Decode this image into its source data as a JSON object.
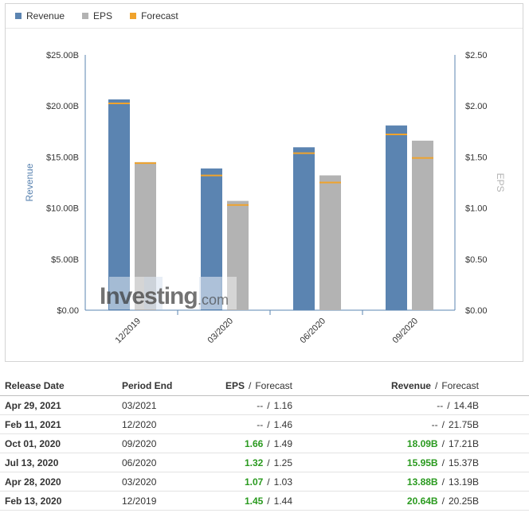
{
  "legend": {
    "revenue": "Revenue",
    "eps": "EPS",
    "forecast": "Forecast"
  },
  "colors": {
    "revenue": "#5b84b1",
    "eps": "#b3b3b3",
    "forecast": "#f0a32c",
    "positive": "#2a9a1f"
  },
  "watermark": {
    "brand": "Investing",
    "suffix": ".com"
  },
  "chart_data": {
    "type": "bar",
    "categories": [
      "12/2019",
      "03/2020",
      "06/2020",
      "09/2020"
    ],
    "series": [
      {
        "name": "Revenue",
        "axis": "left",
        "unit": "B",
        "values": [
          20.64,
          13.88,
          15.95,
          18.09
        ],
        "forecast": [
          20.25,
          13.19,
          15.37,
          17.21
        ]
      },
      {
        "name": "EPS",
        "axis": "right",
        "values": [
          1.45,
          1.07,
          1.32,
          1.66
        ],
        "forecast": [
          1.44,
          1.03,
          1.25,
          1.49
        ]
      }
    ],
    "ylabel_left": "Revenue",
    "ylabel_right": "EPS",
    "ylim_left": [
      0,
      25
    ],
    "ylim_right": [
      0,
      2.5
    ],
    "yticks_left": [
      "$0.00",
      "$5.00B",
      "$10.00B",
      "$15.00B",
      "$20.00B",
      "$25.00B"
    ],
    "yticks_right": [
      "$0.00",
      "$0.50",
      "$1.00",
      "$1.50",
      "$2.00",
      "$2.50"
    ],
    "legend_position": "top-left",
    "grid": false
  },
  "table": {
    "headers": {
      "release_date": "Release Date",
      "period_end": "Period End",
      "eps": "EPS",
      "eps_forecast": "Forecast",
      "revenue": "Revenue",
      "revenue_forecast": "Forecast",
      "slash": "/"
    },
    "rows": [
      {
        "release": "Apr 29, 2021",
        "period": "03/2021",
        "eps": "--",
        "eps_fc": "1.16",
        "rev": "--",
        "rev_fc": "14.4B",
        "status": "none"
      },
      {
        "release": "Feb 11, 2021",
        "period": "12/2020",
        "eps": "--",
        "eps_fc": "1.46",
        "rev": "--",
        "rev_fc": "21.75B",
        "status": "none"
      },
      {
        "release": "Oct 01, 2020",
        "period": "09/2020",
        "eps": "1.66",
        "eps_fc": "1.49",
        "rev": "18.09B",
        "rev_fc": "17.21B",
        "status": "green"
      },
      {
        "release": "Jul 13, 2020",
        "period": "06/2020",
        "eps": "1.32",
        "eps_fc": "1.25",
        "rev": "15.95B",
        "rev_fc": "15.37B",
        "status": "green"
      },
      {
        "release": "Apr 28, 2020",
        "period": "03/2020",
        "eps": "1.07",
        "eps_fc": "1.03",
        "rev": "13.88B",
        "rev_fc": "13.19B",
        "status": "green"
      },
      {
        "release": "Feb 13, 2020",
        "period": "12/2019",
        "eps": "1.45",
        "eps_fc": "1.44",
        "rev": "20.64B",
        "rev_fc": "20.25B",
        "status": "green"
      }
    ]
  }
}
